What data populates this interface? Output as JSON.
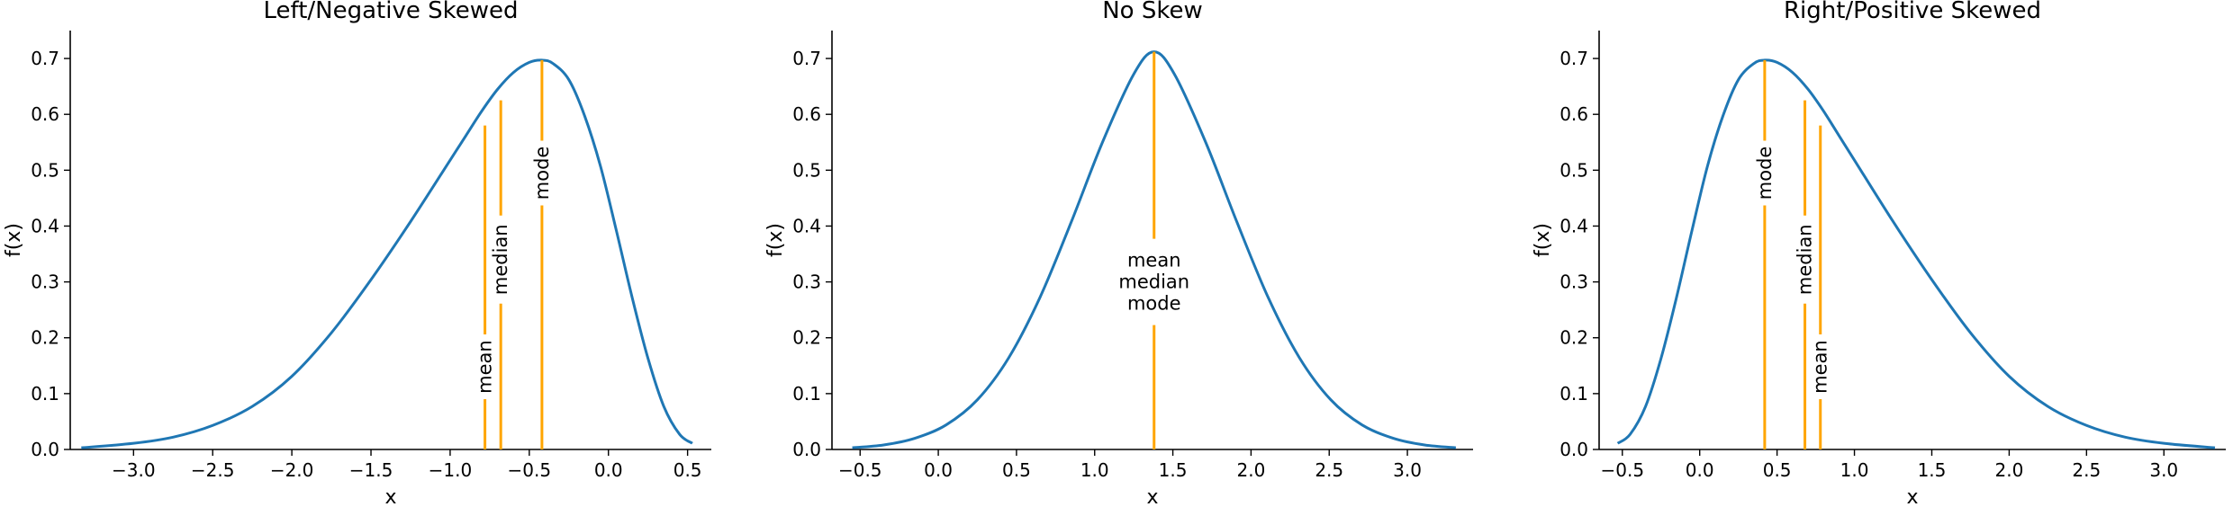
{
  "chart_data": [
    {
      "type": "line",
      "title": "Left/Negative Skewed",
      "xlabel": "x",
      "ylabel": "f(x)",
      "xlim": [
        -3.4,
        0.65
      ],
      "ylim": [
        0,
        0.75
      ],
      "xticks": [
        "−3.0",
        "−2.5",
        "−2.0",
        "−1.5",
        "−1.0",
        "−0.5",
        "0.0",
        "0.5"
      ],
      "xtick_values": [
        -3.0,
        -2.5,
        -2.0,
        -1.5,
        -1.0,
        -0.5,
        0.0,
        0.5
      ],
      "yticks": [
        "0.0",
        "0.1",
        "0.2",
        "0.3",
        "0.4",
        "0.5",
        "0.6",
        "0.7"
      ],
      "ytick_values": [
        0,
        0.1,
        0.2,
        0.3,
        0.4,
        0.5,
        0.6,
        0.7
      ],
      "grid": false,
      "line_color": "#1f77b4",
      "marker_color": "#ffa500",
      "series": [
        {
          "x": [
            -3.33,
            -3.0,
            -2.75,
            -2.5,
            -2.25,
            -2.0,
            -1.75,
            -1.5,
            -1.25,
            -1.0,
            -0.9,
            -0.8,
            -0.7,
            -0.6,
            -0.5,
            -0.42,
            -0.35,
            -0.25,
            -0.15,
            -0.05,
            0.05,
            0.15,
            0.25,
            0.35,
            0.45,
            0.53
          ],
          "y": [
            0.003,
            0.011,
            0.022,
            0.043,
            0.077,
            0.131,
            0.209,
            0.304,
            0.408,
            0.518,
            0.562,
            0.606,
            0.645,
            0.675,
            0.693,
            0.697,
            0.691,
            0.662,
            0.597,
            0.507,
            0.392,
            0.272,
            0.163,
            0.077,
            0.027,
            0.011
          ]
        }
      ],
      "markers": [
        {
          "label": "mean",
          "x": -0.78,
          "y": 0.58,
          "label_y": 0.148
        },
        {
          "label": "median",
          "x": -0.68,
          "y": 0.625,
          "label_y": 0.34
        },
        {
          "label": "mode",
          "x": -0.42,
          "y": 0.697,
          "label_y": 0.495
        }
      ]
    },
    {
      "type": "line",
      "title": "No Skew",
      "xlabel": "x",
      "ylabel": "f(x)",
      "xlim": [
        -0.68,
        3.42
      ],
      "ylim": [
        0,
        0.75
      ],
      "xticks": [
        "−0.5",
        "0.0",
        "0.5",
        "1.0",
        "1.5",
        "2.0",
        "2.5",
        "3.0"
      ],
      "xtick_values": [
        -0.5,
        0.0,
        0.5,
        1.0,
        1.5,
        2.0,
        2.5,
        3.0
      ],
      "yticks": [
        "0.0",
        "0.1",
        "0.2",
        "0.3",
        "0.4",
        "0.5",
        "0.6",
        "0.7"
      ],
      "ytick_values": [
        0,
        0.1,
        0.2,
        0.3,
        0.4,
        0.5,
        0.6,
        0.7
      ],
      "grid": false,
      "line_color": "#1f77b4",
      "marker_color": "#ffa500",
      "series": [
        {
          "x": [
            -0.55,
            -0.35,
            -0.15,
            0.05,
            0.25,
            0.45,
            0.65,
            0.85,
            1.05,
            1.25,
            1.38,
            1.51,
            1.71,
            1.91,
            2.11,
            2.31,
            2.51,
            2.71,
            2.91,
            3.11,
            3.31
          ],
          "y": [
            0.003,
            0.008,
            0.02,
            0.044,
            0.089,
            0.164,
            0.272,
            0.407,
            0.55,
            0.672,
            0.712,
            0.672,
            0.55,
            0.407,
            0.272,
            0.164,
            0.089,
            0.044,
            0.02,
            0.008,
            0.003
          ]
        }
      ],
      "markers": [
        {
          "label": "mean\nmedian\nmode",
          "x": 1.38,
          "y": 0.712,
          "label_y": 0.3
        }
      ]
    },
    {
      "type": "line",
      "title": "Right/Positive Skewed",
      "xlabel": "x",
      "ylabel": "f(x)",
      "xlim": [
        -0.65,
        3.4
      ],
      "ylim": [
        0,
        0.75
      ],
      "xticks": [
        "−0.5",
        "0.0",
        "0.5",
        "1.0",
        "1.5",
        "2.0",
        "2.5",
        "3.0"
      ],
      "xtick_values": [
        -0.5,
        0.0,
        0.5,
        1.0,
        1.5,
        2.0,
        2.5,
        3.0
      ],
      "yticks": [
        "0.0",
        "0.1",
        "0.2",
        "0.3",
        "0.4",
        "0.5",
        "0.6",
        "0.7"
      ],
      "ytick_values": [
        0,
        0.1,
        0.2,
        0.3,
        0.4,
        0.5,
        0.6,
        0.7
      ],
      "grid": false,
      "line_color": "#1f77b4",
      "marker_color": "#ffa500",
      "series": [
        {
          "x": [
            -0.53,
            -0.45,
            -0.35,
            -0.25,
            -0.15,
            -0.05,
            0.05,
            0.15,
            0.25,
            0.35,
            0.42,
            0.5,
            0.6,
            0.7,
            0.8,
            0.9,
            1.0,
            1.25,
            1.5,
            1.75,
            2.0,
            2.25,
            2.5,
            2.75,
            3.0,
            3.33
          ],
          "y": [
            0.011,
            0.027,
            0.077,
            0.163,
            0.272,
            0.392,
            0.507,
            0.597,
            0.662,
            0.691,
            0.697,
            0.693,
            0.675,
            0.645,
            0.606,
            0.562,
            0.518,
            0.408,
            0.304,
            0.209,
            0.131,
            0.077,
            0.043,
            0.022,
            0.011,
            0.003
          ]
        }
      ],
      "markers": [
        {
          "label": "mode",
          "x": 0.42,
          "y": 0.697,
          "label_y": 0.495
        },
        {
          "label": "median",
          "x": 0.68,
          "y": 0.625,
          "label_y": 0.34
        },
        {
          "label": "mean",
          "x": 0.78,
          "y": 0.58,
          "label_y": 0.148
        }
      ]
    }
  ]
}
